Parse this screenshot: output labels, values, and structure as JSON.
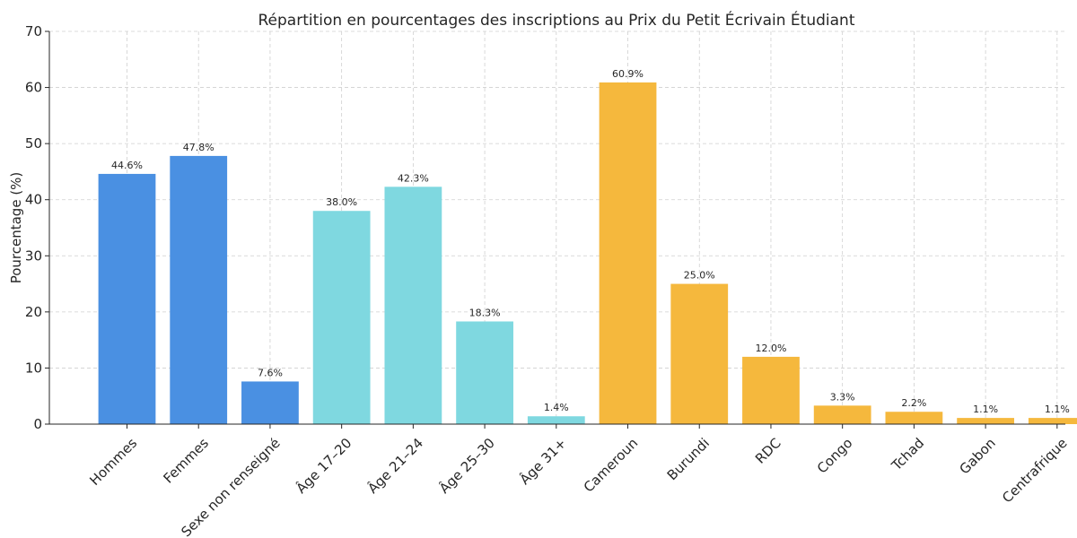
{
  "chart_data": {
    "type": "bar",
    "title": "Répartition en pourcentages des inscriptions au Prix du Petit Écrivain Étudiant",
    "xlabel": "",
    "ylabel": "Pourcentage (%)",
    "ylim": [
      0,
      70
    ],
    "yticks": [
      0,
      10,
      20,
      30,
      40,
      50,
      60,
      70
    ],
    "grid": true,
    "categories": [
      "Hommes",
      "Femmes",
      "Sexe non renseigné",
      "Âge 17–20",
      "Âge 21–24",
      "Âge 25–30",
      "Âge 31+",
      "Cameroun",
      "Burundi",
      "RDC",
      "Congo",
      "Tchad",
      "Gabon",
      "Centrafrique"
    ],
    "values": [
      44.6,
      47.8,
      7.6,
      38.0,
      42.3,
      18.3,
      1.4,
      60.9,
      25.0,
      12.0,
      3.3,
      2.2,
      1.1,
      1.1
    ],
    "data_labels": [
      "44.6%",
      "47.8%",
      "7.6%",
      "38.0%",
      "42.3%",
      "18.3%",
      "1.4%",
      "60.9%",
      "25.0%",
      "12.0%",
      "3.3%",
      "2.2%",
      "1.1%",
      "1.1%"
    ],
    "colors": [
      "#4a90e2",
      "#4a90e2",
      "#4a90e2",
      "#7fd8e0",
      "#7fd8e0",
      "#7fd8e0",
      "#7fd8e0",
      "#f5b83d",
      "#f5b83d",
      "#f5b83d",
      "#f5b83d",
      "#f5b83d",
      "#f5b83d",
      "#f5b83d"
    ]
  }
}
